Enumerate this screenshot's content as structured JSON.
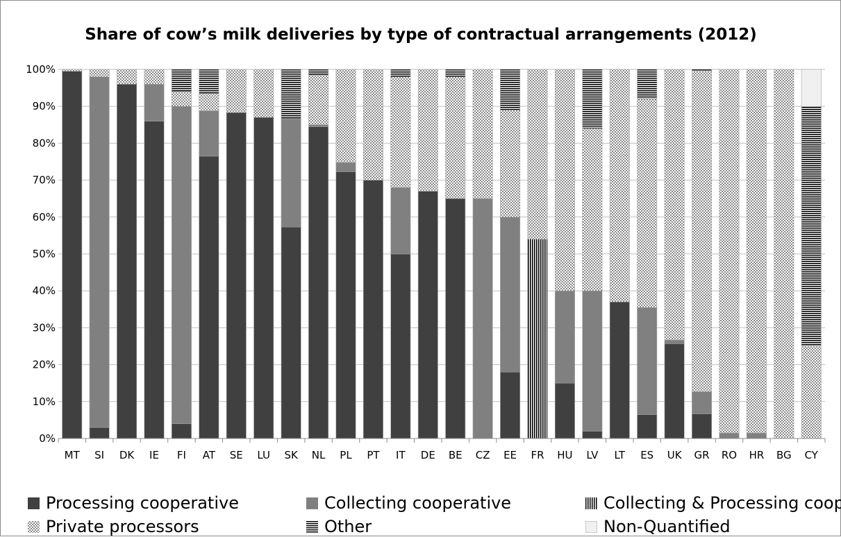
{
  "chart_data": {
    "type": "bar",
    "stacked": true,
    "title": "Share of cow’s milk deliveries by type of contractual arrangements (2012)",
    "xlabel": "",
    "ylabel": "",
    "ylim": [
      0,
      100
    ],
    "yticks": [
      "0%",
      "10%",
      "20%",
      "30%",
      "40%",
      "50%",
      "60%",
      "70%",
      "80%",
      "90%",
      "100%"
    ],
    "grid": true,
    "legend_position": "bottom",
    "categories": [
      "MT",
      "SI",
      "DK",
      "IE",
      "FI",
      "AT",
      "SE",
      "LU",
      "SK",
      "NL",
      "PL",
      "PT",
      "IT",
      "DE",
      "BE",
      "CZ",
      "EE",
      "FR",
      "HU",
      "LV",
      "LT",
      "ES",
      "UK",
      "GR",
      "RO",
      "HR",
      "BG",
      "CY"
    ],
    "series": [
      {
        "name": "Processing cooperative",
        "color": "#404040",
        "pattern": "solid",
        "values": [
          99.5,
          3,
          96,
          86,
          4,
          76.5,
          88.3,
          87,
          57.3,
          84.5,
          72.3,
          70,
          50,
          67,
          65,
          0,
          18,
          0,
          15,
          2,
          37,
          6.5,
          25.7,
          6.7,
          0,
          0,
          0,
          0
        ]
      },
      {
        "name": "Collecting cooperative",
        "color": "#808080",
        "pattern": "solid",
        "values": [
          0,
          95,
          0,
          10,
          86,
          12.3,
          0,
          0,
          29.3,
          0.5,
          2.5,
          0,
          18,
          0,
          0,
          65,
          42,
          0,
          25,
          38,
          0,
          29,
          1,
          6,
          1.5,
          1.5,
          0,
          0
        ]
      },
      {
        "name": "Collecting & Processing coop.",
        "color": "#000000",
        "pattern": "vertical-lines",
        "values": [
          0,
          0,
          0,
          0,
          0,
          0,
          0,
          0,
          0,
          0,
          0,
          0,
          0,
          0,
          0,
          0,
          0,
          54,
          0,
          0,
          0,
          0,
          0,
          0,
          0,
          0,
          0,
          0
        ]
      },
      {
        "name": "Private processors",
        "color": "#b0b0b0",
        "pattern": "checker",
        "values": [
          0.5,
          2,
          4,
          4,
          4,
          4.5,
          11.7,
          13,
          0,
          13.5,
          25.2,
          30,
          30,
          33,
          33,
          35,
          29,
          46,
          60,
          44,
          63,
          56.5,
          73.3,
          86.8,
          98.5,
          98.5,
          100,
          25
        ]
      },
      {
        "name": "Other",
        "color": "#000000",
        "pattern": "horizontal-lines",
        "values": [
          0,
          0,
          0,
          0,
          6,
          6.7,
          0,
          0,
          13.4,
          1.5,
          0,
          0,
          2,
          0,
          2,
          0,
          11,
          0,
          0,
          16,
          0,
          8,
          0,
          0.5,
          0,
          0,
          0,
          65
        ]
      },
      {
        "name": "Non-Quantified",
        "color": "#f0f0f0",
        "pattern": "solid",
        "values": [
          0,
          0,
          0,
          0,
          0,
          0,
          0,
          0,
          0,
          0,
          0,
          0,
          0,
          0,
          0,
          0,
          0,
          0,
          0,
          0,
          0,
          0,
          0,
          0,
          0,
          0,
          0,
          10
        ]
      }
    ]
  }
}
